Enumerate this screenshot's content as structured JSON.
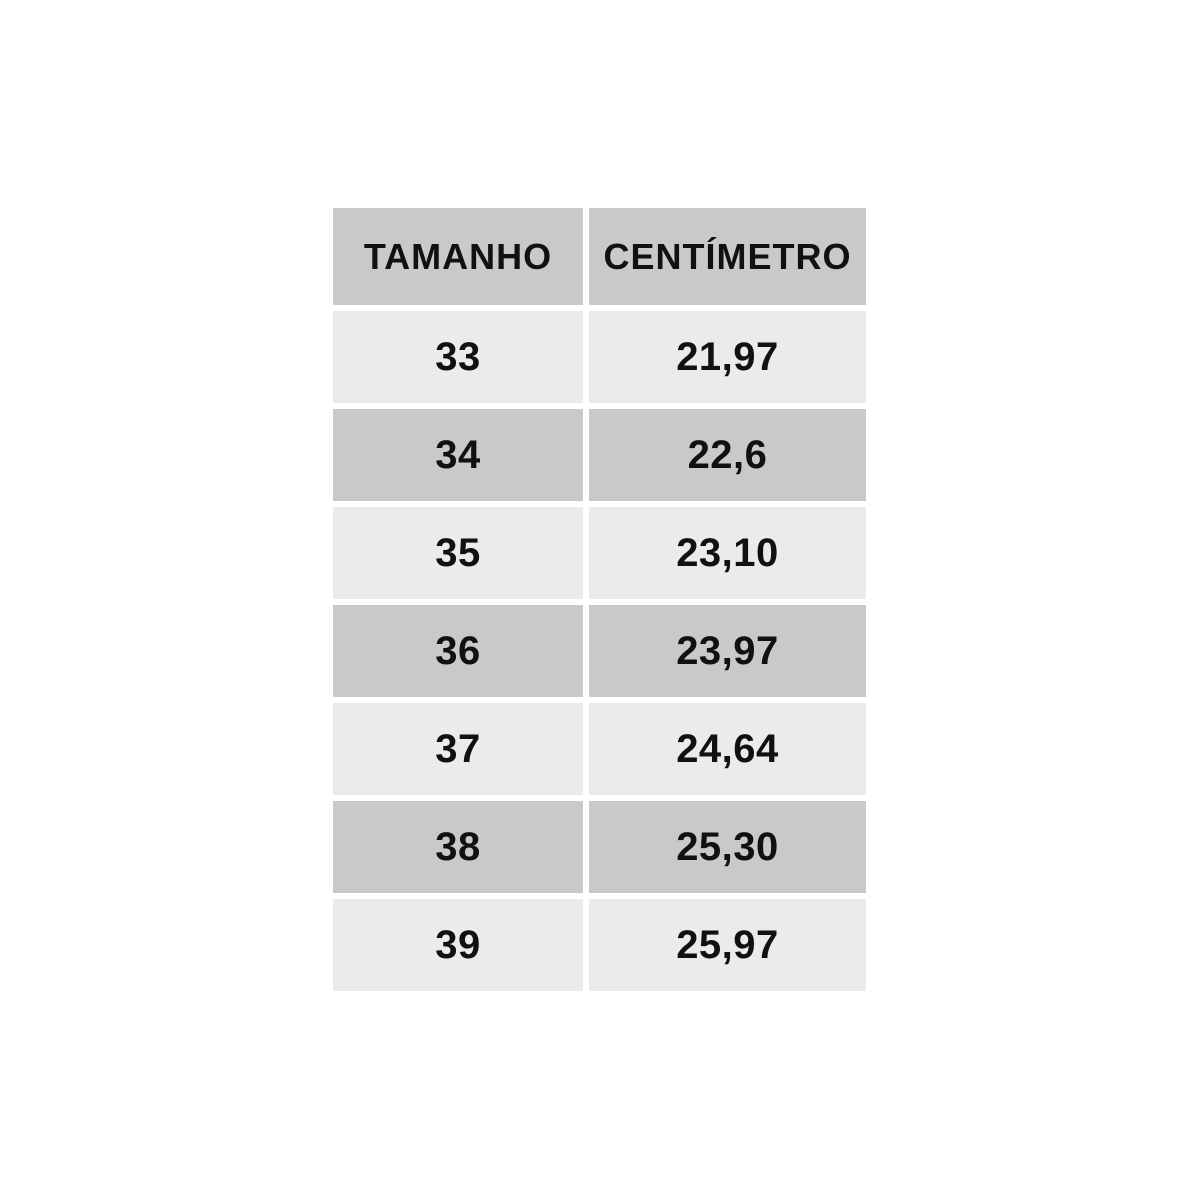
{
  "colors": {
    "background": "#ffffff",
    "row_dark": "#c9c9c9",
    "row_light": "#ebebeb",
    "text": "#111111"
  },
  "table": {
    "headers": [
      "TAMANHO",
      "CENTÍMETRO"
    ],
    "rows": [
      [
        "33",
        "21,97"
      ],
      [
        "34",
        "22,6"
      ],
      [
        "35",
        "23,10"
      ],
      [
        "36",
        "23,97"
      ],
      [
        "37",
        "24,64"
      ],
      [
        "38",
        "25,30"
      ],
      [
        "39",
        "25,97"
      ]
    ]
  },
  "chart_data": {
    "type": "table",
    "title": "",
    "columns": [
      "TAMANHO",
      "CENTÍMETRO"
    ],
    "rows": [
      [
        "33",
        "21,97"
      ],
      [
        "34",
        "22,6"
      ],
      [
        "35",
        "23,10"
      ],
      [
        "36",
        "23,97"
      ],
      [
        "37",
        "24,64"
      ],
      [
        "38",
        "25,30"
      ],
      [
        "39",
        "25,97"
      ]
    ],
    "layout": {
      "header_background": "#c9c9c9",
      "row_stripe_colors": [
        "#ebebeb",
        "#c9c9c9"
      ],
      "grid": "white gutters between cells"
    }
  }
}
